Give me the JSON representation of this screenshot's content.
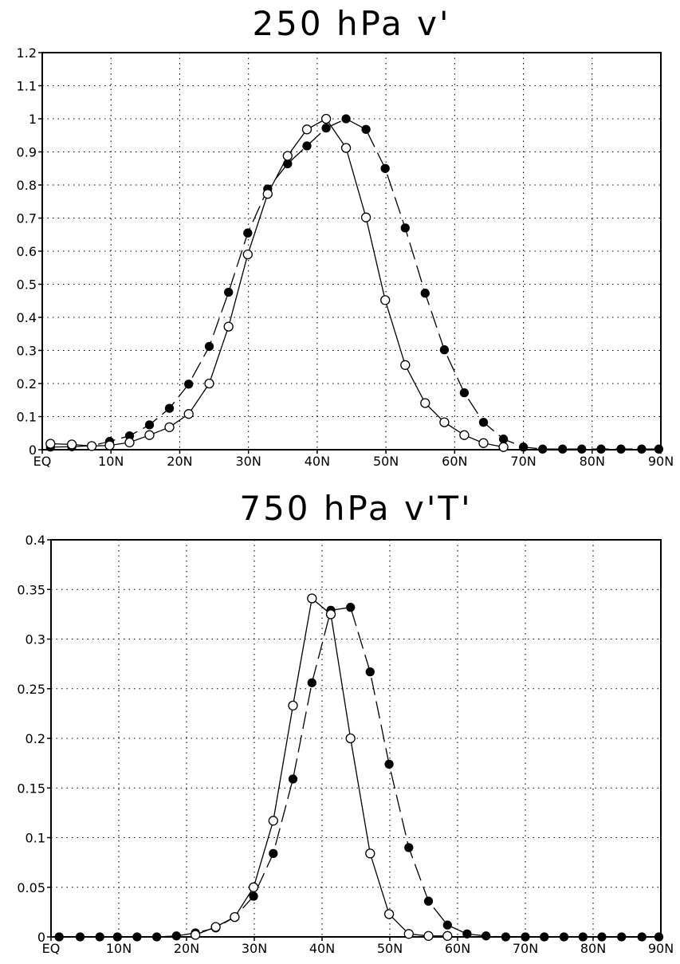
{
  "chart_data": [
    {
      "type": "line",
      "title": "250 hPa v'",
      "xlabel": "",
      "ylabel": "",
      "xlim": [
        0,
        90
      ],
      "ylim": [
        0,
        1.2
      ],
      "x_ticks": [
        0,
        10,
        20,
        30,
        40,
        50,
        60,
        70,
        80,
        90
      ],
      "x_tick_labels": [
        "EQ",
        "10N",
        "20N",
        "30N",
        "40N",
        "50N",
        "60N",
        "70N",
        "80N",
        "90N"
      ],
      "y_ticks": [
        0,
        0.1,
        0.2,
        0.3,
        0.4,
        0.5,
        0.6,
        0.7,
        0.8,
        0.9,
        1,
        1.1,
        1.2
      ],
      "y_tick_labels": [
        "0",
        "0.1",
        "0.2",
        "0.3",
        "0.4",
        "0.5",
        "0.6",
        "0.7",
        "0.8",
        "0.9",
        "1",
        "1.1",
        "1.2"
      ],
      "grid": true,
      "x": [
        1.2,
        4.3,
        7.2,
        9.8,
        12.7,
        15.6,
        18.5,
        21.3,
        24.3,
        27.1,
        29.9,
        32.8,
        35.7,
        38.5,
        41.3,
        44.2,
        47.1,
        49.9,
        52.8,
        55.7,
        58.5,
        61.4,
        64.2,
        67.1,
        70,
        72.8,
        75.7,
        78.5,
        81.3,
        84.2,
        87.2,
        89.7
      ],
      "series": [
        {
          "marker": "filled-circle",
          "line": "dashed",
          "color": "#000000",
          "values": [
            0.008,
            0.009,
            0.012,
            0.025,
            0.042,
            0.075,
            0.125,
            0.198,
            0.312,
            0.476,
            0.655,
            0.788,
            0.864,
            0.918,
            0.972,
            1.0,
            0.968,
            0.85,
            0.67,
            0.473,
            0.302,
            0.172,
            0.083,
            0.032,
            0.008,
            0.002,
            0.002,
            0.002,
            0.002,
            0.002,
            0.002,
            0.002
          ]
        },
        {
          "marker": "open-circle",
          "line": "solid",
          "color": "#000000",
          "values": [
            0.018,
            0.016,
            0.011,
            0.013,
            0.022,
            0.044,
            0.068,
            0.108,
            0.2,
            0.372,
            0.59,
            0.773,
            0.888,
            0.968,
            1.0,
            0.912,
            0.702,
            0.452,
            0.256,
            0.141,
            0.083,
            0.044,
            0.02,
            0.008,
            null,
            null,
            null,
            null,
            null,
            null,
            null,
            null
          ]
        }
      ]
    },
    {
      "type": "line",
      "title": "750 hPa v'T'",
      "xlabel": "",
      "ylabel": "",
      "xlim": [
        0,
        90
      ],
      "ylim": [
        0,
        0.4
      ],
      "x_ticks": [
        0,
        10,
        20,
        30,
        40,
        50,
        60,
        70,
        80,
        90
      ],
      "x_tick_labels": [
        "EQ",
        "10N",
        "20N",
        "30N",
        "40N",
        "50N",
        "60N",
        "70N",
        "80N",
        "90N"
      ],
      "y_ticks": [
        0,
        0.05,
        0.1,
        0.15,
        0.2,
        0.25,
        0.3,
        0.35,
        0.4
      ],
      "y_tick_labels": [
        "0",
        "0.05",
        "0.1",
        "0.15",
        "0.2",
        "0.25",
        "0.3",
        "0.35",
        "0.4"
      ],
      "grid": true,
      "x": [
        1.2,
        4.3,
        7.2,
        9.8,
        12.7,
        15.6,
        18.5,
        21.3,
        24.3,
        27.1,
        29.9,
        32.8,
        35.7,
        38.5,
        41.3,
        44.2,
        47.1,
        49.9,
        52.8,
        55.7,
        58.5,
        61.4,
        64.2,
        67.1,
        70,
        72.8,
        75.7,
        78.5,
        81.3,
        84.2,
        87.2,
        89.7
      ],
      "series": [
        {
          "marker": "filled-circle",
          "line": "dashed",
          "color": "#000000",
          "values": [
            0,
            0,
            0,
            0,
            0,
            0,
            0.001,
            0.004,
            0.009,
            0.02,
            0.041,
            0.084,
            0.159,
            0.256,
            0.329,
            0.332,
            0.267,
            0.174,
            0.09,
            0.036,
            0.012,
            0.003,
            0.001,
            0,
            0,
            0,
            0,
            0,
            0,
            0,
            0,
            0
          ]
        },
        {
          "marker": "open-circle",
          "line": "solid",
          "color": "#000000",
          "values": [
            null,
            null,
            null,
            null,
            null,
            null,
            null,
            0.002,
            0.01,
            0.02,
            0.05,
            0.117,
            0.233,
            0.341,
            0.325,
            0.2,
            0.084,
            0.023,
            0.003,
            0.001,
            0.001,
            null,
            null,
            null,
            null,
            null,
            null,
            null,
            null,
            null,
            null,
            null
          ]
        }
      ]
    }
  ]
}
